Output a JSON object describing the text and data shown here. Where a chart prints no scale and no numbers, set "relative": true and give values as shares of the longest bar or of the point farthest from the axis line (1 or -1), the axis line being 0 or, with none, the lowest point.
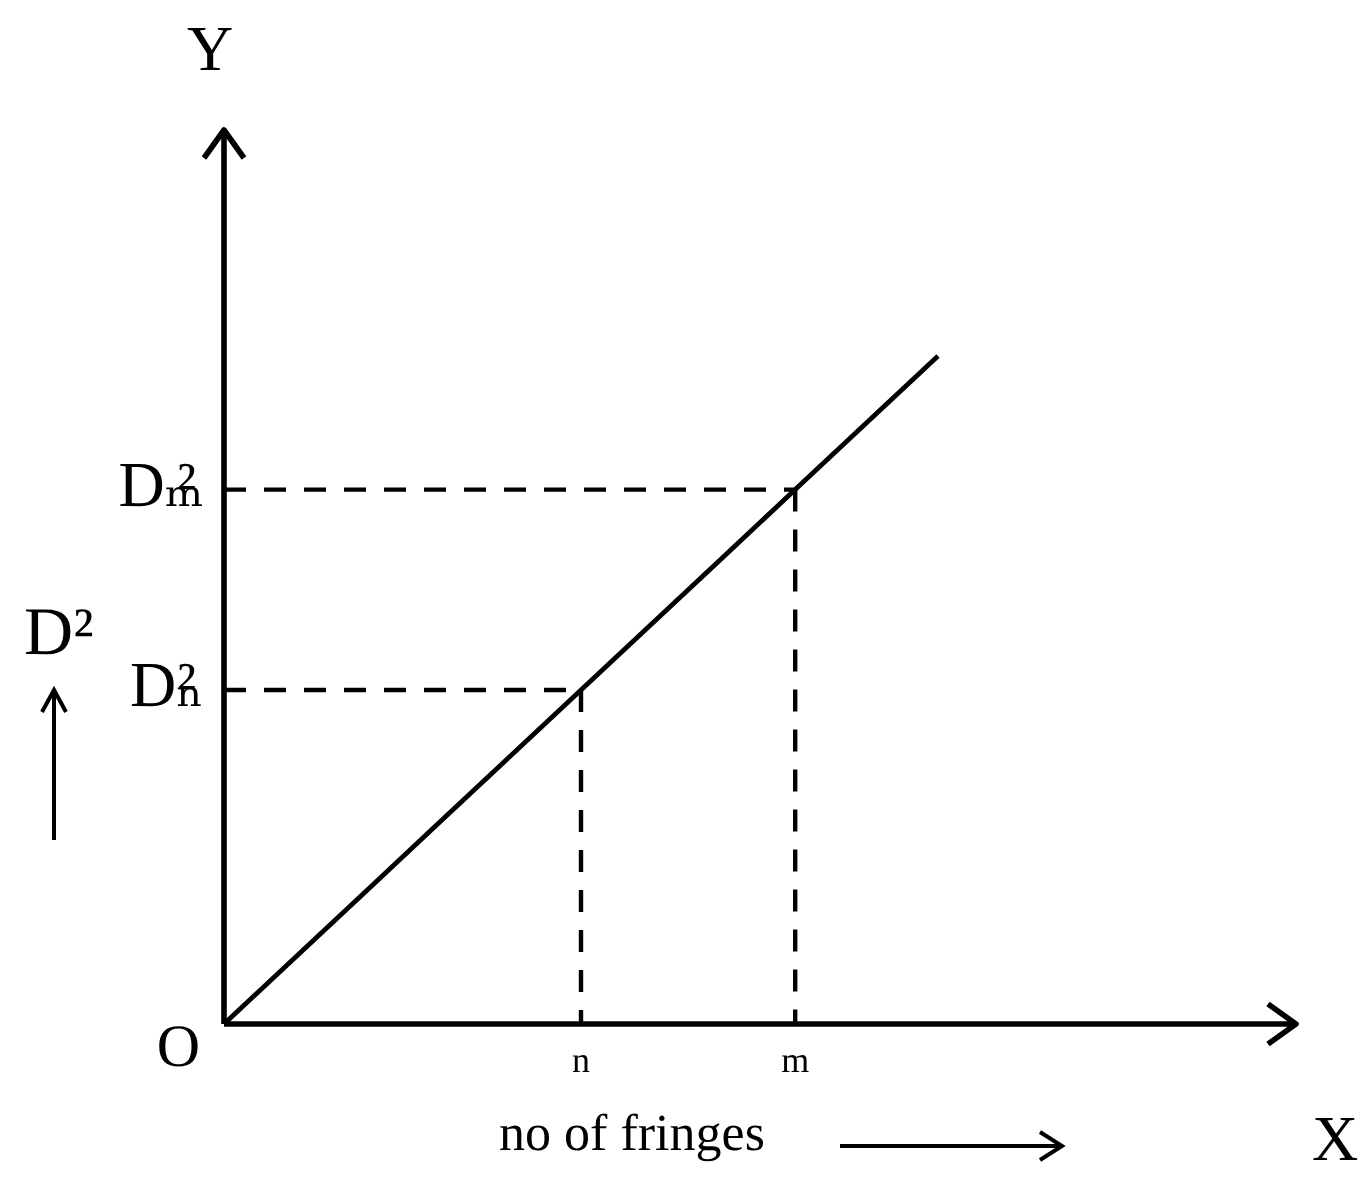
{
  "chart_data": {
    "type": "line",
    "relative": true,
    "line_style": "solid",
    "xlabel": "no of fringes",
    "ylabel": "D²",
    "categories": [
      null,
      null,
      null,
      null,
      null,
      "n",
      null,
      null,
      "m",
      null,
      null
    ],
    "series": [
      {
        "values": [
          0,
          0.1,
          0.2,
          0.3,
          0.4,
          0.5,
          0.6,
          0.7,
          0.8,
          0.9,
          1
        ],
        "color": "#000000"
      },
      {
        "x": [
          "n",
          "n"
        ],
        "values": [
          0.5,
          0
        ],
        "color": "#000000",
        "line_style": "dashed"
      },
      {
        "x": [
          "m",
          "m"
        ],
        "values": [
          0.8,
          0
        ],
        "color": "#000000",
        "line_style": "dashed"
      }
    ],
    "ref_lines": [
      {
        "axis": "y",
        "value": 0.5,
        "label": "Dₙ²",
        "color": "#000000",
        "line_style": "dashed"
      },
      {
        "axis": "y",
        "value": 0.8,
        "label": "Dₘ²",
        "color": "#000000",
        "line_style": "dashed"
      }
    ],
    "annotations": [
      "Y",
      "O",
      "X"
    ]
  }
}
